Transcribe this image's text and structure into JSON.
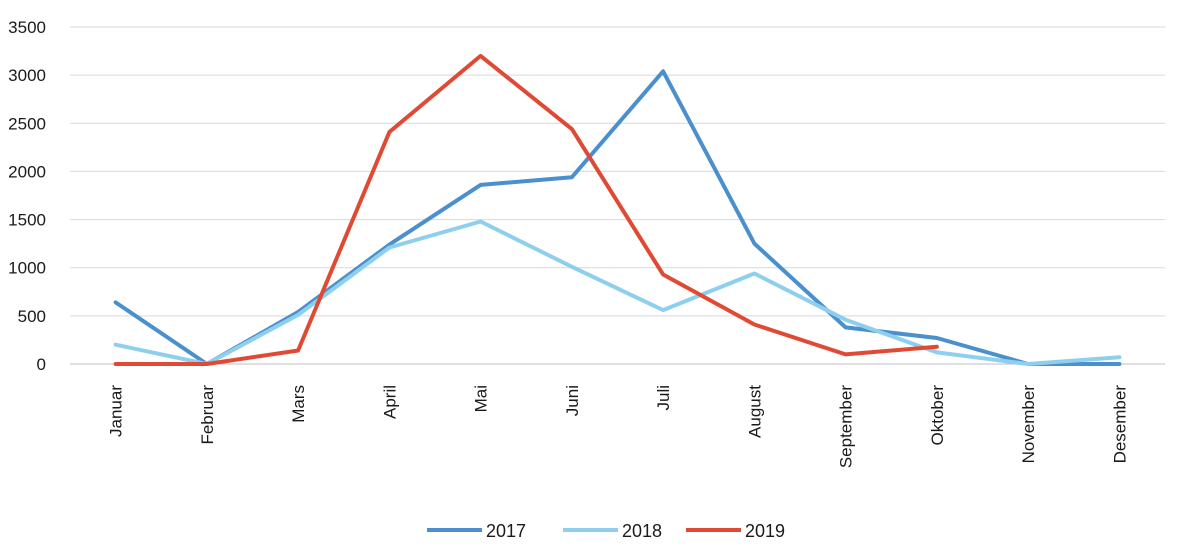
{
  "chart_data": {
    "type": "line",
    "title": "",
    "xlabel": "",
    "ylabel": "",
    "ylim": [
      0,
      3500
    ],
    "yticks": [
      0,
      500,
      1000,
      1500,
      2000,
      2500,
      3000,
      3500
    ],
    "grid": true,
    "legend_position": "bottom",
    "categories": [
      "Januar",
      "Februar",
      "Mars",
      "April",
      "Mai",
      "Juni",
      "Juli",
      "August",
      "September",
      "Oktober",
      "November",
      "Desember"
    ],
    "series": [
      {
        "name": "2017",
        "color": "#4a8fce",
        "values": [
          640,
          0,
          540,
          1240,
          1860,
          1940,
          3040,
          1250,
          380,
          270,
          0,
          0
        ]
      },
      {
        "name": "2018",
        "color": "#8fcfee",
        "values": [
          200,
          0,
          510,
          1210,
          1480,
          1010,
          560,
          940,
          460,
          120,
          0,
          70
        ]
      },
      {
        "name": "2019",
        "color": "#e04a35",
        "values": [
          0,
          0,
          140,
          2410,
          3200,
          2440,
          930,
          410,
          100,
          180,
          null,
          null
        ]
      }
    ]
  }
}
